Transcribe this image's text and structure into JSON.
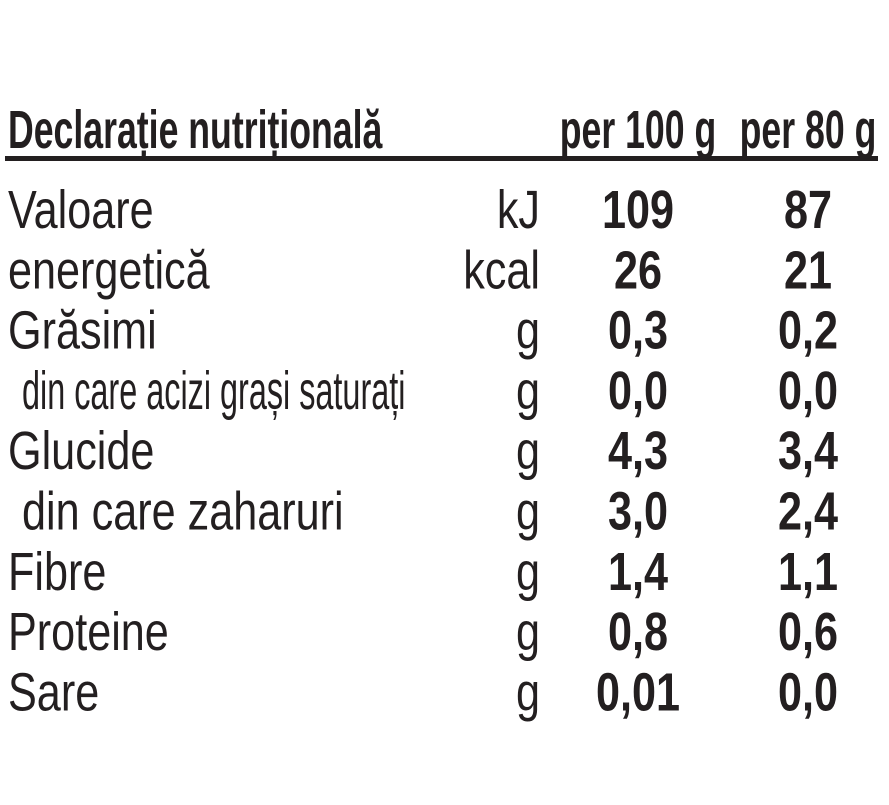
{
  "header": {
    "title": "Declarație nutrițională",
    "columns": [
      "per 100 g",
      "per 80 g"
    ]
  },
  "table": {
    "rows": [
      [
        "Valoare",
        "kJ",
        "109",
        "87"
      ],
      [
        "energetică",
        "kcal",
        "26",
        "21"
      ],
      [
        "Grăsimi",
        "g",
        "0,3",
        "0,2"
      ],
      [
        "din care acizi grași saturați",
        "g",
        "0,0",
        "0,0"
      ],
      [
        "Glucide",
        "g",
        "4,3",
        "3,4"
      ],
      [
        "din care zaharuri",
        "g",
        "3,0",
        "2,4"
      ],
      [
        "Fibre",
        "g",
        "1,4",
        "1,1"
      ],
      [
        "Proteine",
        "g",
        "0,8",
        "0,6"
      ],
      [
        "Sare",
        "g",
        "0,01",
        "0,0"
      ]
    ]
  }
}
